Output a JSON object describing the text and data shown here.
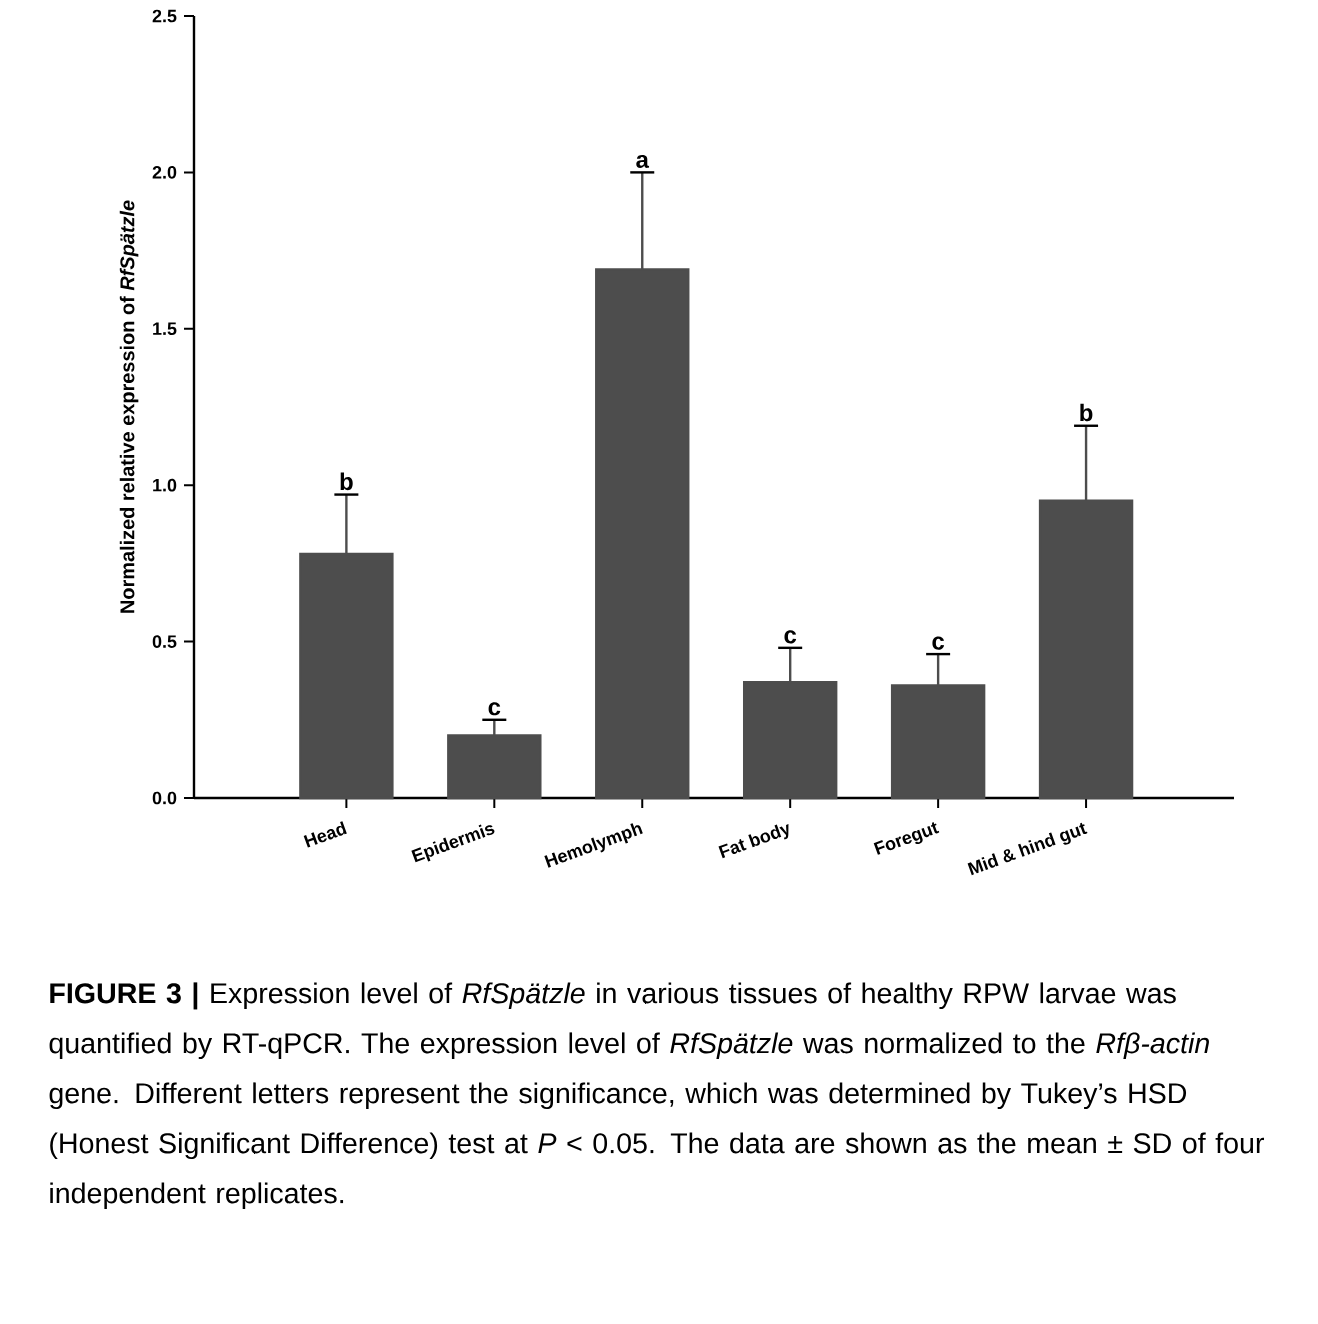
{
  "chart_data": {
    "type": "bar",
    "ylabel": "Normalized relative expression of *RfSpätzle*",
    "categories": [
      "Head",
      "Epidermis",
      "Hemolymph",
      "Fat body",
      "Foregut",
      "Mid & hind gut"
    ],
    "values": [
      0.78,
      0.2,
      1.69,
      0.37,
      0.36,
      0.95
    ],
    "errors": [
      [
        0.78,
        0.97
      ],
      [
        0.2,
        0.25
      ],
      [
        1.69,
        2.0
      ],
      [
        0.37,
        0.48
      ],
      [
        0.36,
        0.46
      ],
      [
        0.95,
        1.19
      ]
    ],
    "color": "#4d4d4d",
    "ylim": [
      0,
      2.5
    ],
    "yticks": [
      {
        "value": 0,
        "label": "0.0"
      },
      0.5,
      {
        "value": 1,
        "label": "1.0"
      },
      1.5,
      {
        "value": 2,
        "label": "2.0"
      },
      2.5
    ],
    "grid": false,
    "annotations": [
      {
        "text": "b",
        "x": "Head",
        "y": 0.97
      },
      {
        "text": "c",
        "x": "Epidermis",
        "y": 0.25
      },
      {
        "text": "a",
        "x": "Hemolymph",
        "y": 2.0
      },
      {
        "text": "c",
        "x": "Fat body",
        "y": 0.48
      },
      {
        "text": "c",
        "x": "Foregut",
        "y": 0.46
      },
      {
        "text": "b",
        "x": "Mid & hind gut",
        "y": 1.19
      },
      "**FIGURE 3 |** Expression level of *RfSpätzle* in various tissues of healthy RPW larvae was quantified by RT-qPCR. The expression level of *RfSpätzle* was normalized to the *Rfβ-actin* gene. Different letters represent the significance, which was determined by Tukey’s HSD (Honest Significant Difference) test at *P* < 0.05. The data are shown as the mean ± SD of four independent replicates."
    ]
  }
}
